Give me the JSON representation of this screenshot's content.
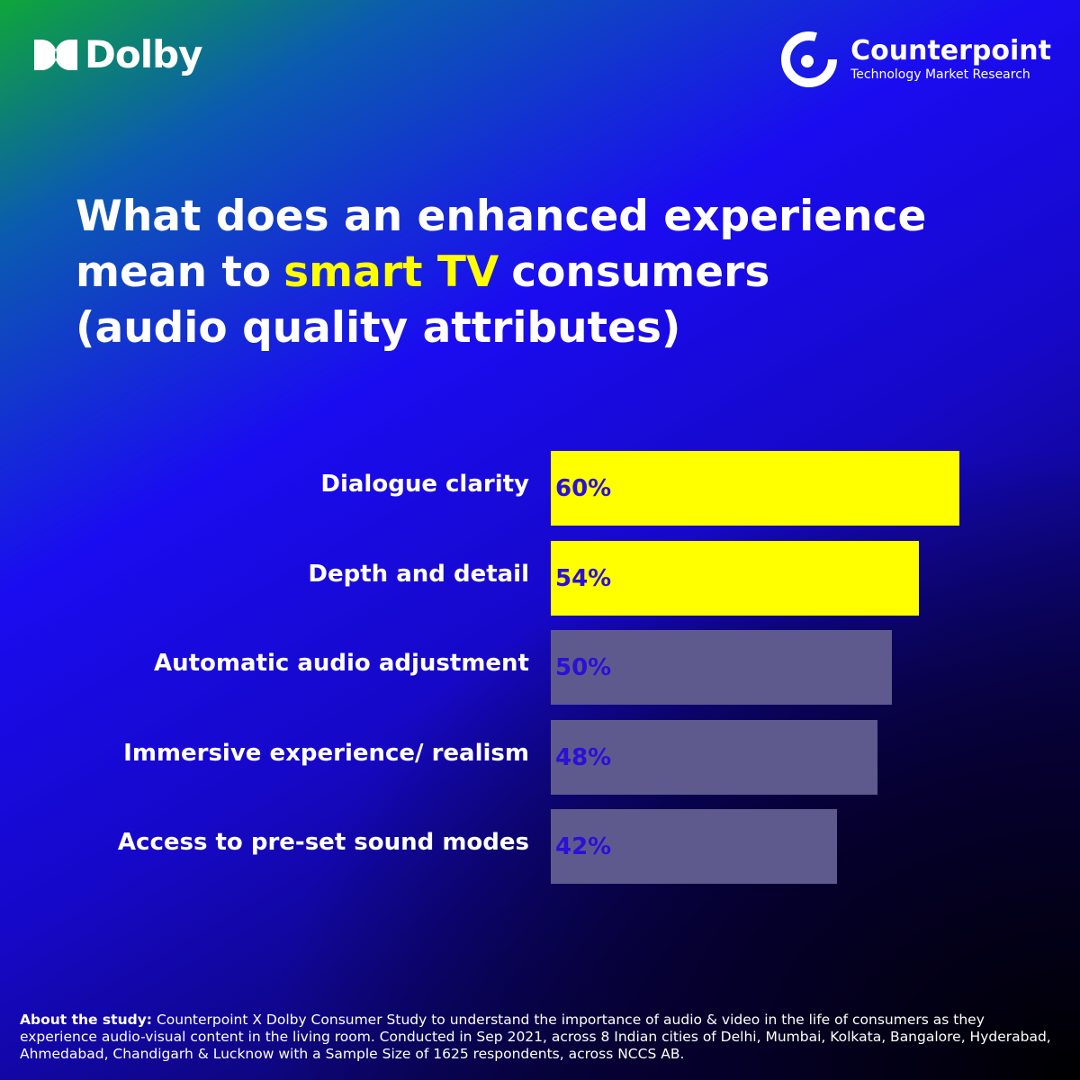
{
  "logos": {
    "left": "Dolby",
    "right_name": "Counterpoint",
    "right_tagline": "Technology Market Research"
  },
  "chart_data": {
    "type": "bar",
    "orientation": "horizontal",
    "title": [
      "What does an enhanced experience mean to",
      "smart TV",
      "consumers",
      "(audio quality attributes)"
    ],
    "categories": [
      "Dialogue clarity",
      "Depth and detail",
      "Automatic audio adjustment",
      "Immersive experience/ realism",
      "Access to pre-set sound modes"
    ],
    "values": [
      60,
      54,
      50,
      48,
      42
    ],
    "value_labels": [
      "60%",
      "54%",
      "50%",
      "48%",
      "42%"
    ],
    "colors": [
      "#ffff00",
      "#ffff00",
      "#5e5a8e",
      "#5e5a8e",
      "#5e5a8e"
    ],
    "label_color": "#2a10d8"
  },
  "footer": {
    "lead": "About the study:",
    "text": "Counterpoint X Dolby Consumer Study to understand the importance of audio & video in the life of consumers as they experience audio-visual content in the living room. Conducted in Sep 2021, across 8 Indian cities of Delhi, Mumbai, Kolkata, Bangalore, Hyderabad, Ahmedabad, Chandigarh & Lucknow with a Sample Size of 1625 respondents, across NCCS AB."
  }
}
